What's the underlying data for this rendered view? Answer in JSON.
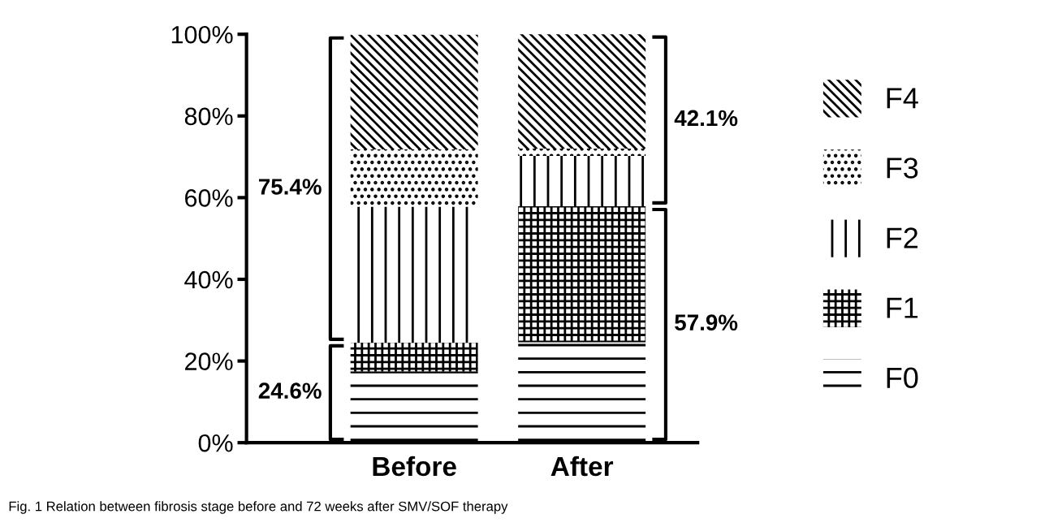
{
  "chart_data": {
    "type": "bar",
    "stacked": true,
    "categories": [
      "Before",
      "After"
    ],
    "series": [
      {
        "name": "F0",
        "color": "#000000",
        "values": [
          17.5,
          24.6
        ]
      },
      {
        "name": "F1",
        "color": "#000000",
        "values": [
          7.0,
          33.3
        ]
      },
      {
        "name": "F2",
        "color": "#000000",
        "values": [
          33.3,
          12.3
        ]
      },
      {
        "name": "F3",
        "color": "#000000",
        "values": [
          14.0,
          1.8
        ]
      },
      {
        "name": "F4",
        "color": "#000000",
        "values": [
          28.1,
          28.1
        ]
      }
    ],
    "ylim": [
      0,
      100
    ],
    "yticks": [
      {
        "value": 0,
        "label": "0%"
      },
      {
        "value": 20,
        "label": "20%"
      },
      {
        "value": 40,
        "label": "40%"
      },
      {
        "value": 60,
        "label": "60%"
      },
      {
        "value": 80,
        "label": "80%"
      },
      {
        "value": 100,
        "label": "100%"
      }
    ],
    "legend": "right",
    "grid": false,
    "annotations": [
      "24.6%",
      "75.4%",
      "57.9%",
      "42.1%",
      "Fig. 1 Relation between fibrosis stage before and 72 weeks after SMV/SOF therapy"
    ]
  }
}
